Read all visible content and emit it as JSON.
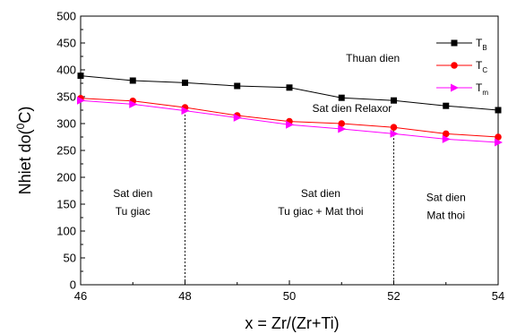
{
  "chart_data": {
    "type": "line",
    "xlabel": "x = Zr/(Zr+Ti)",
    "ylabel_main": "Nhiet do(",
    "ylabel_sup": "0",
    "ylabel_end": "C)",
    "xlim": [
      46,
      54
    ],
    "ylim": [
      0,
      500
    ],
    "x_ticks": [
      46,
      48,
      50,
      52,
      54
    ],
    "y_ticks": [
      0,
      50,
      100,
      150,
      200,
      250,
      300,
      350,
      400,
      450,
      500
    ],
    "x": [
      46,
      47,
      48,
      49,
      50,
      51,
      52,
      53,
      54
    ],
    "series": [
      {
        "name": "T",
        "sub": "B",
        "color": "#000000",
        "marker": "square",
        "values": [
          389,
          380,
          376,
          370,
          367,
          348,
          343,
          333,
          325
        ]
      },
      {
        "name": "T",
        "sub": "C",
        "color": "#ff0000",
        "marker": "circle",
        "values": [
          347,
          342,
          330,
          315,
          304,
          300,
          293,
          281,
          275
        ]
      },
      {
        "name": "T",
        "sub": "m",
        "color": "#ff00ff",
        "marker": "triangle-right",
        "values": [
          343,
          336,
          324,
          311,
          298,
          290,
          281,
          271,
          265
        ]
      }
    ],
    "vlines": [
      {
        "x": 48,
        "y_top": 330
      },
      {
        "x": 52,
        "y_top": 293
      }
    ],
    "annotations": [
      {
        "lines": [
          "Thuan dien"
        ],
        "x": 51.6,
        "y": 415
      },
      {
        "lines": [
          "Sat dien Relaxor"
        ],
        "x": 51.2,
        "y": 322
      },
      {
        "lines": [
          "Sat dien",
          "Tu giac"
        ],
        "x": 47.0,
        "y": 163
      },
      {
        "lines": [
          "Sat dien",
          "Tu giac + Mat thoi"
        ],
        "x": 50.6,
        "y": 163
      },
      {
        "lines": [
          "Sat dien",
          "Mat thoi"
        ],
        "x": 53.0,
        "y": 156
      }
    ],
    "legend_position": "top-right",
    "grid": false
  }
}
